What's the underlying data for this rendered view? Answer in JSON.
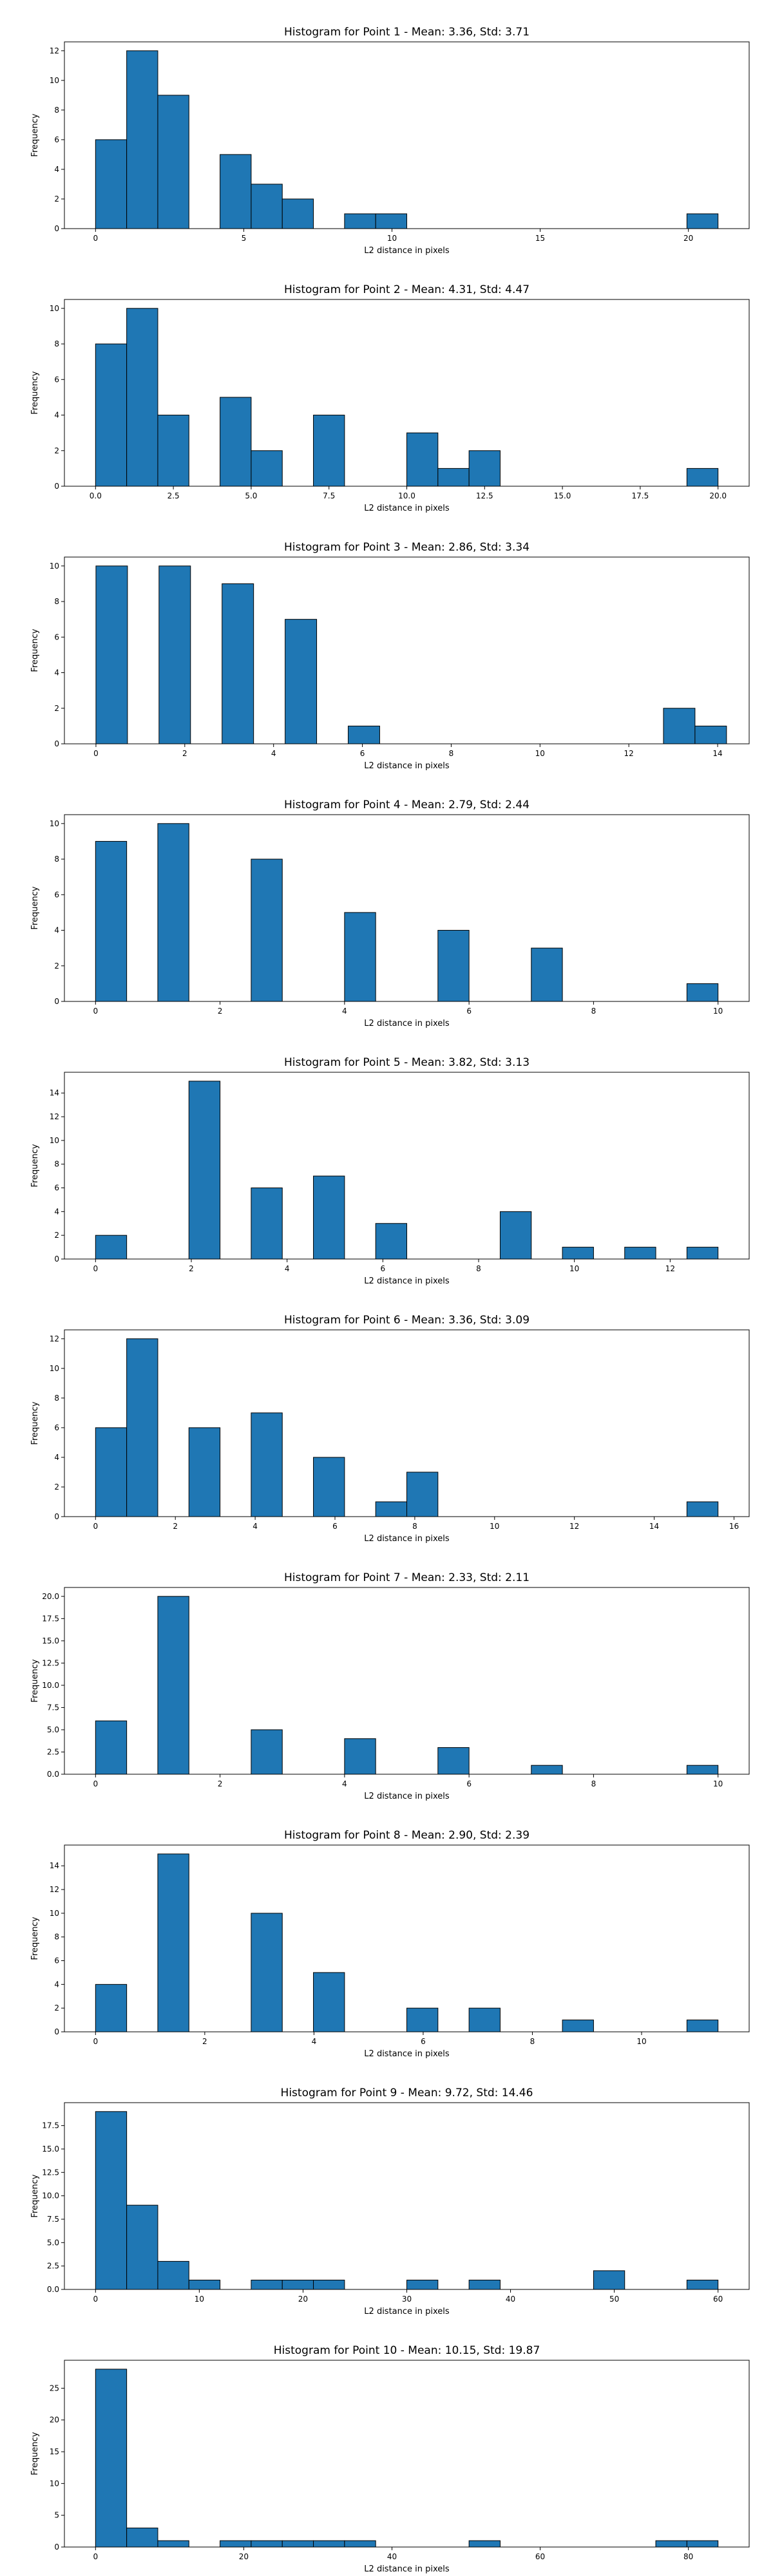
{
  "chart_data": [
    {
      "type": "bar",
      "title": "Histogram for Point 1 - Mean: 3.36, Std: 3.71",
      "xlabel": "L2 distance in pixels",
      "ylabel": "Frequency",
      "xlim": [
        -1.05,
        22.05
      ],
      "ylim": [
        0,
        12.6
      ],
      "xticks": [
        0,
        5,
        10,
        15,
        20
      ],
      "xtick_labels": [
        "0",
        "5",
        "10",
        "15",
        "20"
      ],
      "yticks": [
        0,
        2,
        4,
        6,
        8,
        10,
        12
      ],
      "ytick_labels": [
        "0",
        "2",
        "4",
        "6",
        "8",
        "10",
        "12"
      ],
      "bin_edges": [
        0,
        1.05,
        2.1,
        3.15,
        4.2,
        5.25,
        6.3,
        7.35,
        8.4,
        9.45,
        10.5,
        11.55,
        12.6,
        13.65,
        14.7,
        15.75,
        16.8,
        17.85,
        18.9,
        19.95,
        21
      ],
      "values": [
        6,
        12,
        9,
        0,
        5,
        3,
        2,
        0,
        1,
        1,
        0,
        0,
        0,
        0,
        0,
        0,
        0,
        0,
        0,
        1
      ]
    },
    {
      "type": "bar",
      "title": "Histogram for Point 2 - Mean: 4.31, Std: 4.47",
      "xlabel": "L2 distance in pixels",
      "ylabel": "Frequency",
      "xlim": [
        -1.0,
        21.0
      ],
      "ylim": [
        0,
        10.5
      ],
      "xticks": [
        0,
        2.5,
        5,
        7.5,
        10,
        12.5,
        15,
        17.5,
        20
      ],
      "xtick_labels": [
        "0.0",
        "2.5",
        "5.0",
        "7.5",
        "10.0",
        "12.5",
        "15.0",
        "17.5",
        "20.0"
      ],
      "yticks": [
        0,
        2,
        4,
        6,
        8,
        10
      ],
      "ytick_labels": [
        "0",
        "2",
        "4",
        "6",
        "8",
        "10"
      ],
      "bin_edges": [
        0,
        1,
        2,
        3,
        4,
        5,
        6,
        7,
        8,
        9,
        10,
        11,
        12,
        13,
        14,
        15,
        16,
        17,
        18,
        19,
        20
      ],
      "values": [
        8,
        10,
        4,
        0,
        5,
        2,
        0,
        4,
        0,
        0,
        3,
        1,
        2,
        0,
        0,
        0,
        0,
        0,
        0,
        1
      ]
    },
    {
      "type": "bar",
      "title": "Histogram for Point 3 - Mean: 2.86, Std: 3.34",
      "xlabel": "L2 distance in pixels",
      "ylabel": "Frequency",
      "xlim": [
        -0.71,
        14.71
      ],
      "ylim": [
        0,
        10.5
      ],
      "xticks": [
        0,
        2,
        4,
        6,
        8,
        10,
        12,
        14
      ],
      "xtick_labels": [
        "0",
        "2",
        "4",
        "6",
        "8",
        "10",
        "12",
        "14"
      ],
      "yticks": [
        0,
        2,
        4,
        6,
        8,
        10
      ],
      "ytick_labels": [
        "0",
        "2",
        "4",
        "6",
        "8",
        "10"
      ],
      "bin_edges": [
        0,
        0.71,
        1.42,
        2.13,
        2.84,
        3.55,
        4.26,
        4.97,
        5.68,
        6.39,
        7.1,
        7.81,
        8.52,
        9.23,
        9.94,
        10.65,
        11.36,
        12.07,
        12.78,
        13.49,
        14.2
      ],
      "values": [
        10,
        0,
        10,
        0,
        9,
        0,
        7,
        0,
        1,
        0,
        0,
        0,
        0,
        0,
        0,
        0,
        0,
        0,
        2,
        1
      ]
    },
    {
      "type": "bar",
      "title": "Histogram for Point 4 - Mean: 2.79, Std: 2.44",
      "xlabel": "L2 distance in pixels",
      "ylabel": "Frequency",
      "xlim": [
        -0.5,
        10.5
      ],
      "ylim": [
        0,
        10.5
      ],
      "xticks": [
        0,
        2,
        4,
        6,
        8,
        10
      ],
      "xtick_labels": [
        "0",
        "2",
        "4",
        "6",
        "8",
        "10"
      ],
      "yticks": [
        0,
        2,
        4,
        6,
        8,
        10
      ],
      "ytick_labels": [
        "0",
        "2",
        "4",
        "6",
        "8",
        "10"
      ],
      "bin_edges": [
        0,
        0.5,
        1,
        1.5,
        2,
        2.5,
        3,
        3.5,
        4,
        4.5,
        5,
        5.5,
        6,
        6.5,
        7,
        7.5,
        8,
        8.5,
        9,
        9.5,
        10
      ],
      "values": [
        9,
        0,
        10,
        0,
        0,
        8,
        0,
        0,
        5,
        0,
        0,
        4,
        0,
        0,
        3,
        0,
        0,
        0,
        0,
        1
      ]
    },
    {
      "type": "bar",
      "title": "Histogram for Point 5 - Mean: 3.82, Std: 3.13",
      "xlabel": "L2 distance in pixels",
      "ylabel": "Frequency",
      "xlim": [
        -0.65,
        13.65
      ],
      "ylim": [
        0,
        15.75
      ],
      "xticks": [
        0,
        2,
        4,
        6,
        8,
        10,
        12
      ],
      "xtick_labels": [
        "0",
        "2",
        "4",
        "6",
        "8",
        "10",
        "12"
      ],
      "yticks": [
        0,
        2,
        4,
        6,
        8,
        10,
        12,
        14
      ],
      "ytick_labels": [
        "0",
        "2",
        "4",
        "6",
        "8",
        "10",
        "12",
        "14"
      ],
      "bin_edges": [
        0,
        0.65,
        1.3,
        1.95,
        2.6,
        3.25,
        3.9,
        4.55,
        5.2,
        5.85,
        6.5,
        7.15,
        7.8,
        8.45,
        9.1,
        9.75,
        10.4,
        11.05,
        11.7,
        12.35,
        13
      ],
      "values": [
        2,
        0,
        0,
        15,
        0,
        6,
        0,
        7,
        0,
        3,
        0,
        0,
        0,
        4,
        0,
        1,
        0,
        1,
        0,
        1
      ]
    },
    {
      "type": "bar",
      "title": "Histogram for Point 6 - Mean: 3.36, Std: 3.09",
      "xlabel": "L2 distance in pixels",
      "ylabel": "Frequency",
      "xlim": [
        -0.78,
        16.38
      ],
      "ylim": [
        0,
        12.6
      ],
      "xticks": [
        0,
        2,
        4,
        6,
        8,
        10,
        12,
        14,
        16
      ],
      "xtick_labels": [
        "0",
        "2",
        "4",
        "6",
        "8",
        "10",
        "12",
        "14",
        "16"
      ],
      "yticks": [
        0,
        2,
        4,
        6,
        8,
        10,
        12
      ],
      "ytick_labels": [
        "0",
        "2",
        "4",
        "6",
        "8",
        "10",
        "12"
      ],
      "bin_edges": [
        0,
        0.78,
        1.56,
        2.34,
        3.12,
        3.9,
        4.68,
        5.46,
        6.24,
        7.02,
        7.8,
        8.58,
        9.36,
        10.14,
        10.92,
        11.7,
        12.48,
        13.26,
        14.04,
        14.82,
        15.6
      ],
      "values": [
        6,
        12,
        0,
        6,
        0,
        7,
        0,
        4,
        0,
        1,
        3,
        0,
        0,
        0,
        0,
        0,
        0,
        0,
        0,
        1
      ]
    },
    {
      "type": "bar",
      "title": "Histogram for Point 7 - Mean: 2.33, Std: 2.11",
      "xlabel": "L2 distance in pixels",
      "ylabel": "Frequency",
      "xlim": [
        -0.5,
        10.5
      ],
      "ylim": [
        0,
        21
      ],
      "xticks": [
        0,
        2,
        4,
        6,
        8,
        10
      ],
      "xtick_labels": [
        "0",
        "2",
        "4",
        "6",
        "8",
        "10"
      ],
      "yticks": [
        0,
        2.5,
        5,
        7.5,
        10,
        12.5,
        15,
        17.5,
        20
      ],
      "ytick_labels": [
        "0.0",
        "2.5",
        "5.0",
        "7.5",
        "10.0",
        "12.5",
        "15.0",
        "17.5",
        "20.0"
      ],
      "bin_edges": [
        0,
        0.5,
        1,
        1.5,
        2,
        2.5,
        3,
        3.5,
        4,
        4.5,
        5,
        5.5,
        6,
        6.5,
        7,
        7.5,
        8,
        8.5,
        9,
        9.5,
        10
      ],
      "values": [
        6,
        0,
        20,
        0,
        0,
        5,
        0,
        0,
        4,
        0,
        0,
        3,
        0,
        0,
        1,
        0,
        0,
        0,
        0,
        1
      ]
    },
    {
      "type": "bar",
      "title": "Histogram for Point 8 - Mean: 2.90, Std: 2.39",
      "xlabel": "L2 distance in pixels",
      "ylabel": "Frequency",
      "xlim": [
        -0.57,
        11.97
      ],
      "ylim": [
        0,
        15.75
      ],
      "xticks": [
        0,
        2,
        4,
        6,
        8,
        10
      ],
      "xtick_labels": [
        "0",
        "2",
        "4",
        "6",
        "8",
        "10"
      ],
      "yticks": [
        0,
        2,
        4,
        6,
        8,
        10,
        12,
        14
      ],
      "ytick_labels": [
        "0",
        "2",
        "4",
        "6",
        "8",
        "10",
        "12",
        "14"
      ],
      "bin_edges": [
        0,
        0.57,
        1.14,
        1.71,
        2.28,
        2.85,
        3.42,
        3.99,
        4.56,
        5.13,
        5.7,
        6.27,
        6.84,
        7.41,
        7.98,
        8.55,
        9.12,
        9.69,
        10.26,
        10.83,
        11.4
      ],
      "values": [
        4,
        0,
        15,
        0,
        0,
        10,
        0,
        5,
        0,
        0,
        2,
        0,
        2,
        0,
        0,
        1,
        0,
        0,
        0,
        1
      ]
    },
    {
      "type": "bar",
      "title": "Histogram for Point 9 - Mean: 9.72, Std: 14.46",
      "xlabel": "L2 distance in pixels",
      "ylabel": "Frequency",
      "xlim": [
        -3,
        63
      ],
      "ylim": [
        0,
        19.95
      ],
      "xticks": [
        0,
        10,
        20,
        30,
        40,
        50,
        60
      ],
      "xtick_labels": [
        "0",
        "10",
        "20",
        "30",
        "40",
        "50",
        "60"
      ],
      "yticks": [
        0,
        2.5,
        5,
        7.5,
        10,
        12.5,
        15,
        17.5
      ],
      "ytick_labels": [
        "0.0",
        "2.5",
        "5.0",
        "7.5",
        "10.0",
        "12.5",
        "15.0",
        "17.5"
      ],
      "bin_edges": [
        0,
        3,
        6,
        9,
        12,
        15,
        18,
        21,
        24,
        27,
        30,
        33,
        36,
        39,
        42,
        45,
        48,
        51,
        54,
        57,
        60
      ],
      "values": [
        19,
        9,
        3,
        1,
        0,
        1,
        1,
        1,
        0,
        0,
        1,
        0,
        1,
        0,
        0,
        0,
        2,
        0,
        0,
        1
      ]
    },
    {
      "type": "bar",
      "title": "Histogram for Point 10 - Mean: 10.15, Std: 19.87",
      "xlabel": "L2 distance in pixels",
      "ylabel": "Frequency",
      "xlim": [
        -4.2,
        88.2
      ],
      "ylim": [
        0,
        29.4
      ],
      "xticks": [
        0,
        20,
        40,
        60,
        80
      ],
      "xtick_labels": [
        "0",
        "20",
        "40",
        "60",
        "80"
      ],
      "yticks": [
        0,
        5,
        10,
        15,
        20,
        25
      ],
      "ytick_labels": [
        "0",
        "5",
        "10",
        "15",
        "20",
        "25"
      ],
      "bin_edges": [
        0,
        4.2,
        8.4,
        12.6,
        16.8,
        21,
        25.2,
        29.4,
        33.6,
        37.8,
        42,
        46.2,
        50.4,
        54.6,
        58.8,
        63,
        67.2,
        71.4,
        75.6,
        79.8,
        84
      ],
      "values": [
        28,
        3,
        1,
        0,
        1,
        1,
        1,
        1,
        1,
        0,
        0,
        0,
        1,
        0,
        0,
        0,
        0,
        0,
        1,
        1
      ]
    }
  ]
}
